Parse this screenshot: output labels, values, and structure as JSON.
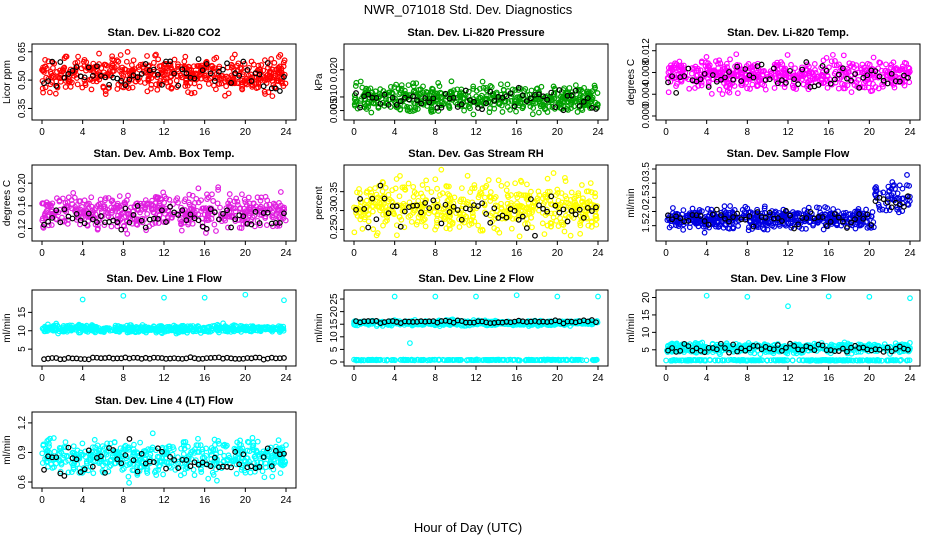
{
  "figure": {
    "title": "NWR_071018 Std. Dev. Diagnostics",
    "xlabel": "Hour of Day (UTC)"
  },
  "chart_data": [
    {
      "type": "scatter",
      "title": "Stan. Dev. Li-820 CO2",
      "ylabel": "Licor ppm",
      "xlim": [
        0,
        24
      ],
      "ylim": [
        0.31,
        0.67
      ],
      "yticks": [
        "0.35",
        "0.50",
        "0.65"
      ],
      "ytick_values": [
        0.35,
        0.5,
        0.65
      ],
      "xticks": [
        "0",
        "4",
        "8",
        "12",
        "16",
        "20",
        "24"
      ],
      "color": "#ff0000",
      "series_desc": "sample vs reference",
      "main_center": 0.53,
      "main_spread": 0.045,
      "black_center": 0.52,
      "black_spread": 0.05
    },
    {
      "type": "scatter",
      "title": "Stan. Dev. Li-820 Pressure",
      "ylabel": "kPa",
      "xlim": [
        0,
        24
      ],
      "ylim": [
        0.003,
        0.028
      ],
      "yticks": [
        "0.005",
        "0.010",
        "0.020"
      ],
      "ytick_values": [
        0.005,
        0.01,
        0.02
      ],
      "xticks": [
        "0",
        "4",
        "8",
        "12",
        "16",
        "20",
        "24"
      ],
      "color": "#00a000",
      "main_center": 0.0095,
      "main_spread": 0.0025,
      "black_center": 0.0095,
      "black_spread": 0.002
    },
    {
      "type": "scatter",
      "title": "Stan. Dev. Li-820 Temp.",
      "ylabel": "degrees C",
      "xlim": [
        0,
        24
      ],
      "ylim": [
        0,
        0.0125
      ],
      "yticks": [
        "0.000",
        "0.004",
        "0.008",
        "0.012"
      ],
      "ytick_values": [
        0,
        0.004,
        0.008,
        0.012
      ],
      "xticks": [
        "0",
        "4",
        "8",
        "12",
        "16",
        "20",
        "24"
      ],
      "color": "#ff00ff",
      "main_center": 0.0075,
      "main_spread": 0.0012,
      "black_center": 0.0075,
      "black_spread": 0.0012
    },
    {
      "type": "scatter",
      "title": "Stan. Dev. Amb. Box Temp.",
      "ylabel": "degrees C",
      "xlim": [
        0,
        24
      ],
      "ylim": [
        0.105,
        0.225
      ],
      "yticks": [
        "0.12",
        "0.16",
        "0.20"
      ],
      "ytick_values": [
        0.12,
        0.16,
        0.2
      ],
      "xticks": [
        "0",
        "4",
        "8",
        "12",
        "16",
        "20",
        "24"
      ],
      "color": "#e020e0",
      "main_center": 0.15,
      "main_spread": 0.015,
      "black_center": 0.14,
      "black_spread": 0.01
    },
    {
      "type": "scatter",
      "title": "Stan. Dev. Gas Stream RH",
      "ylabel": "percent",
      "xlim": [
        0,
        24
      ],
      "ylim": [
        0.23,
        0.41
      ],
      "yticks": [
        "0.25",
        "0.30",
        "0.35"
      ],
      "ytick_values": [
        0.25,
        0.3,
        0.35
      ],
      "xticks": [
        "0",
        "4",
        "8",
        "12",
        "16",
        "20",
        "24"
      ],
      "color": "#ffff00",
      "main_center": 0.31,
      "main_spread": 0.03,
      "black_center": 0.3,
      "black_spread": 0.025
    },
    {
      "type": "scatter",
      "title": "Stan. Dev. Sample Flow",
      "ylabel": "ml/min",
      "xlim": [
        0,
        24
      ],
      "ylim": [
        1.1,
        3.5
      ],
      "yticks": [
        "1.5",
        "2.0",
        "2.5",
        "3.0",
        "3.5"
      ],
      "ytick_values": [
        1.5,
        2.0,
        2.5,
        3.0,
        3.5
      ],
      "xticks": [
        "0",
        "4",
        "8",
        "12",
        "16",
        "20",
        "24"
      ],
      "color": "#0000e0",
      "main_center": 1.75,
      "main_spread": 0.18,
      "black_center": 1.75,
      "black_spread": 0.15
    },
    {
      "type": "scatter",
      "title": "Stan. Dev. Line 1 Flow",
      "ylabel": "ml/min",
      "xlim": [
        0,
        24
      ],
      "ylim": [
        1.5,
        20
      ],
      "yticks": [
        "5",
        "10",
        "15"
      ],
      "ytick_values": [
        5,
        10,
        15
      ],
      "xticks": [
        "0",
        "4",
        "8",
        "12",
        "16",
        "20",
        "24"
      ],
      "color": "#00ffff",
      "main_center": 10.5,
      "main_spread": 0.5,
      "black_center": 2.5,
      "black_spread": 0.15,
      "outliers": [
        [
          4,
          18.5
        ],
        [
          8,
          19.5
        ],
        [
          12,
          19
        ],
        [
          16,
          19
        ],
        [
          20,
          19.8
        ],
        [
          23.8,
          18.3
        ]
      ]
    },
    {
      "type": "scatter",
      "title": "Stan. Dev. Line 2 Flow",
      "ylabel": "ml/min",
      "xlim": [
        0,
        24
      ],
      "ylim": [
        0,
        27
      ],
      "yticks": [
        "0",
        "5",
        "10",
        "15",
        "20",
        "25"
      ],
      "ytick_values": [
        0,
        5,
        10,
        15,
        20,
        25
      ],
      "xticks": [
        "0",
        "4",
        "8",
        "12",
        "16",
        "20",
        "24"
      ],
      "color": "#00ffff",
      "main_center": 15.5,
      "main_spread": 0.5,
      "low_band": 0.8,
      "black_center": 16,
      "black_spread": 0.3,
      "outliers": [
        [
          4,
          26
        ],
        [
          8,
          26
        ],
        [
          12,
          26
        ],
        [
          16,
          26.5
        ],
        [
          20,
          26
        ],
        [
          24,
          26
        ],
        [
          5.5,
          7.5
        ]
      ]
    },
    {
      "type": "scatter",
      "title": "Stan. Dev. Line 3 Flow",
      "ylabel": "ml/min",
      "xlim": [
        0,
        24
      ],
      "ylim": [
        1.5,
        21
      ],
      "yticks": [
        "5",
        "10",
        "15",
        "20"
      ],
      "ytick_values": [
        5,
        10,
        15,
        20
      ],
      "xticks": [
        "0",
        "4",
        "8",
        "12",
        "16",
        "20",
        "24"
      ],
      "color": "#00ffff",
      "main_center": 5.5,
      "main_spread": 0.7,
      "low_band": 2.0,
      "black_center": 5.5,
      "black_spread": 0.6,
      "outliers": [
        [
          4,
          20.5
        ],
        [
          8,
          20.2
        ],
        [
          12,
          17.5
        ],
        [
          16,
          20.3
        ],
        [
          20,
          20.2
        ],
        [
          24,
          19.8
        ]
      ]
    },
    {
      "type": "scatter",
      "title": "Stan. Dev. Line 4 (LT) Flow",
      "ylabel": "ml/min",
      "xlim": [
        0,
        24
      ],
      "ylim": [
        0.58,
        1.27
      ],
      "yticks": [
        "0.6",
        "0.9",
        "1.2"
      ],
      "ytick_values": [
        0.6,
        0.9,
        1.2
      ],
      "xticks": [
        "0",
        "4",
        "8",
        "12",
        "16",
        "20",
        "24"
      ],
      "color": "#00ffff",
      "main_center": 0.85,
      "main_spread": 0.09,
      "black_center": 0.82,
      "black_spread": 0.08
    }
  ]
}
